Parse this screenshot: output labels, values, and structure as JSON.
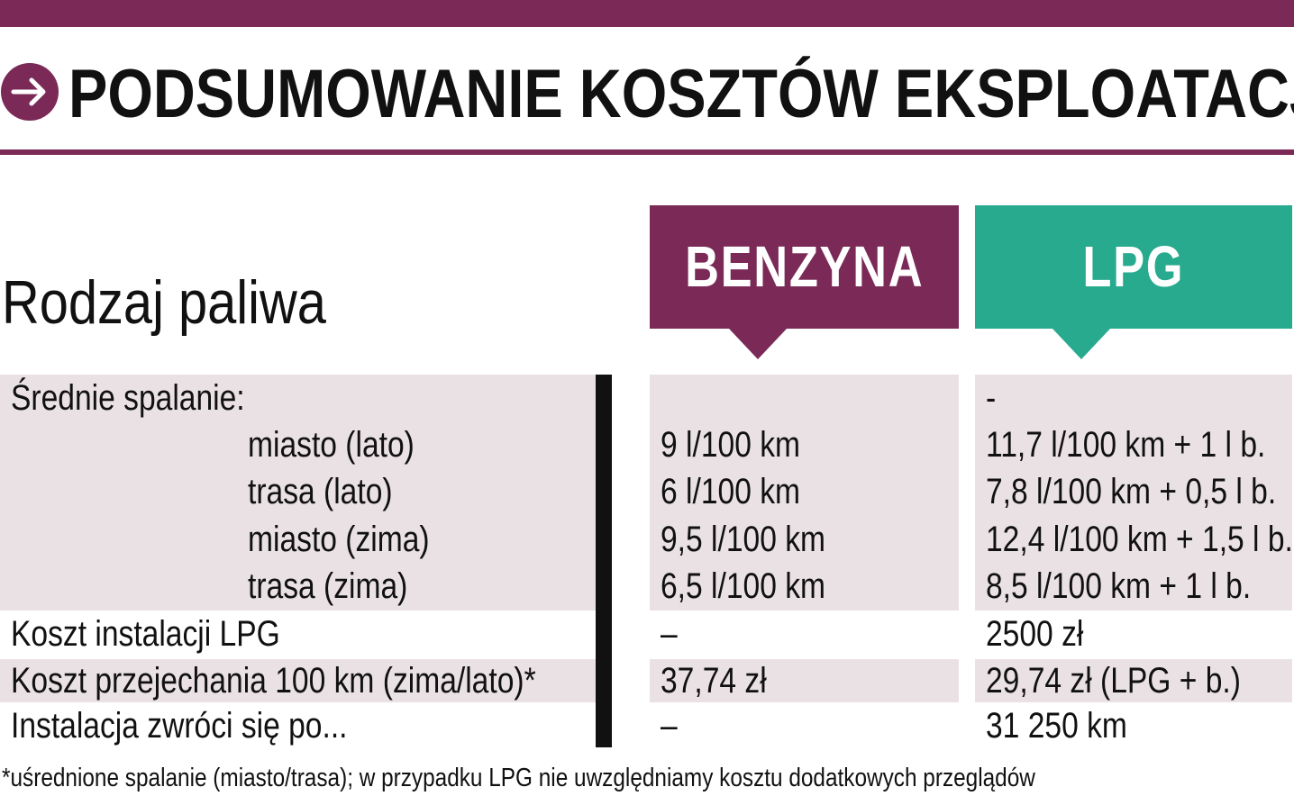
{
  "colors": {
    "accent_plum": "#7b2a57",
    "accent_green": "#27aa8e",
    "row_shade": "#eae1e4",
    "divider": "#111111"
  },
  "header": {
    "icon": "arrow-right-icon",
    "title": "PODSUMOWANIE KOSZTÓW EKSPLOATACJI"
  },
  "table": {
    "row_header_label": "Rodzaj paliwa",
    "columns": [
      "BENZYNA",
      "LPG"
    ],
    "rows": [
      {
        "label": "Średnie spalanie:",
        "benzyna": "",
        "lpg": "-"
      },
      {
        "label": "miasto (lato)",
        "benzyna": "9 l/100 km",
        "lpg": "11,7 l/100 km + 1 l b."
      },
      {
        "label": "trasa (lato)",
        "benzyna": "6 l/100 km",
        "lpg": "7,8 l/100 km + 0,5 l b."
      },
      {
        "label": "miasto (zima)",
        "benzyna": "9,5 l/100 km",
        "lpg": "12,4 l/100 km + 1,5 l b."
      },
      {
        "label": "trasa (zima)",
        "benzyna": "6,5 l/100 km",
        "lpg": "8,5 l/100 km + 1 l b."
      },
      {
        "label": "Koszt instalacji LPG",
        "benzyna": "–",
        "lpg": "2500 zł"
      },
      {
        "label": "Koszt przejechania 100 km (zima/lato)*",
        "benzyna": "37,74 zł",
        "lpg": "29,74 zł (LPG + b.)"
      },
      {
        "label": "Instalacja zwróci się po...",
        "benzyna": "–",
        "lpg": "31 250 km"
      }
    ]
  },
  "footnote": "*uśrednione spalanie (miasto/trasa); w przypadku LPG nie uwzględniamy kosztu dodatkowych przeglądów"
}
